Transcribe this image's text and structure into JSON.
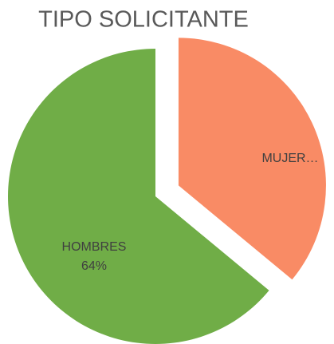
{
  "chart_data": {
    "type": "pie",
    "title": "TIPO SOLICITANTE",
    "categories": [
      "MUJER…",
      "HOMBRES"
    ],
    "values": [
      36,
      64
    ],
    "value_labels": [
      null,
      "64%"
    ],
    "colors": [
      "#f98b65",
      "#70ad47"
    ]
  }
}
